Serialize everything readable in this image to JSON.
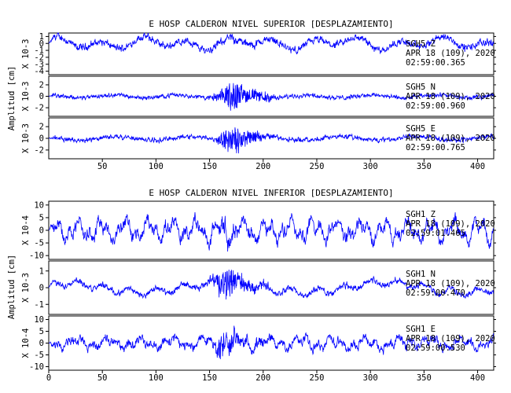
{
  "chart_data": [
    {
      "type": "line",
      "title": "E HOSP CALDERON NIVEL SUPERIOR [DESPLAZAMIENTO]",
      "ylabel": "Amplitud [cm]",
      "xlim": [
        0,
        415
      ],
      "x_ticks": [
        "50",
        "100",
        "150",
        "200",
        "250",
        "300",
        "350",
        "400"
      ],
      "line_color": "#0000ff",
      "grid": false,
      "panels": [
        {
          "component": "SGH5 Z",
          "multiplier": "X 10-3",
          "ylim": [
            -4.5,
            1.5
          ],
          "y_ticks": [
            "1",
            "0",
            "-1",
            "-2",
            "-3",
            "-4"
          ],
          "annotation": [
            "SGH5 Z",
            "APR 18 (109), 2020",
            "02:59:00.365"
          ]
        },
        {
          "component": "SGH5 N",
          "multiplier": "X 10-3",
          "ylim": [
            -3.5,
            3.5
          ],
          "y_ticks": [
            "2",
            "0",
            "-2"
          ],
          "annotation": [
            "SGH5 N",
            "APR 18 (109), 2020",
            "02:59:00.960"
          ]
        },
        {
          "component": "SGH5 E",
          "multiplier": "X 10-3",
          "ylim": [
            -3.5,
            3.5
          ],
          "y_ticks": [
            "2",
            "0",
            "-2"
          ],
          "annotation": [
            "SGH5 E",
            "APR 18 (109), 2020",
            "02:59:00.765"
          ]
        }
      ]
    },
    {
      "type": "line",
      "title": "E HOSP CALDERON NIVEL INFERIOR [DESPLAZAMIENTO]",
      "ylabel": "Amplitud [cm]",
      "xlim": [
        0,
        415
      ],
      "x_ticks": [
        "0",
        "50",
        "100",
        "150",
        "200",
        "250",
        "300",
        "350",
        "400"
      ],
      "line_color": "#0000ff",
      "grid": false,
      "panels": [
        {
          "component": "SGH1 Z",
          "multiplier": "X 10-4",
          "ylim": [
            -11.5,
            11.5
          ],
          "y_ticks": [
            "10",
            "5",
            "0",
            "-5",
            "-10"
          ],
          "annotation": [
            "SGH1 Z",
            "APR 18 (109), 2020",
            "02:59:01.465"
          ]
        },
        {
          "component": "SGH1 N",
          "multiplier": "X 10-3",
          "ylim": [
            -1.6,
            1.6
          ],
          "y_ticks": [
            "1",
            "0",
            "-1"
          ],
          "annotation": [
            "SGH1 N",
            "APR 18 (109), 2020",
            "02:59:00.470"
          ]
        },
        {
          "component": "SGH1 E",
          "multiplier": "X 10-4",
          "ylim": [
            -11.5,
            11.5
          ],
          "y_ticks": [
            "10",
            "5",
            "0",
            "-5",
            "-10"
          ],
          "annotation": [
            "SGH1 E",
            "APR 18 (109), 2020",
            "02:59:00.530"
          ]
        }
      ]
    }
  ]
}
